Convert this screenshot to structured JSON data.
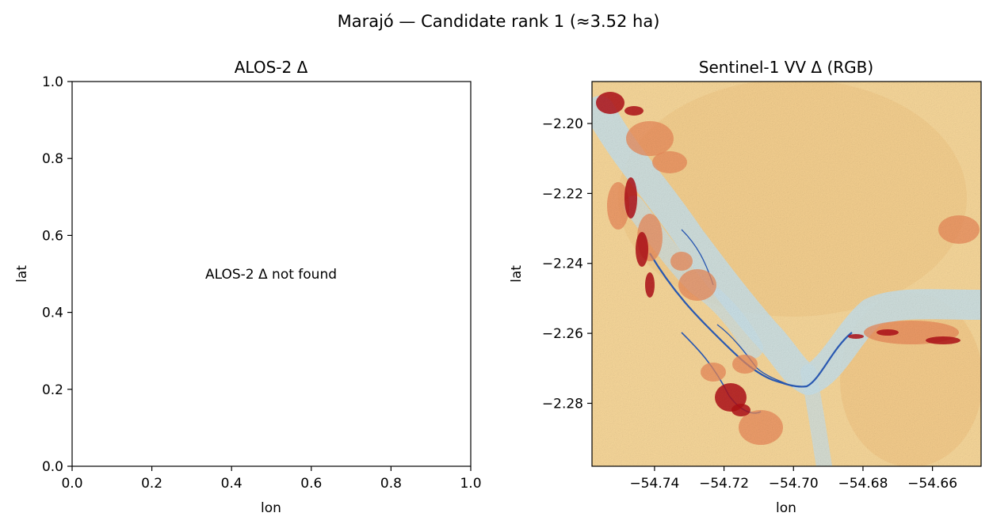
{
  "suptitle": "Marajó — Candidate rank 1 (≈3.52 ha)",
  "chart_data": [
    {
      "type": "scatter",
      "title": "ALOS-2 Δ",
      "xlabel": "lon",
      "ylabel": "lat",
      "xlim": [
        0.0,
        1.0
      ],
      "ylim": [
        0.0,
        1.0
      ],
      "x_ticks": [
        0.0,
        0.2,
        0.4,
        0.6,
        0.8,
        1.0
      ],
      "y_ticks": [
        0.0,
        0.2,
        0.4,
        0.6,
        0.8,
        1.0
      ],
      "x_tick_labels": [
        "0.0",
        "0.2",
        "0.4",
        "0.6",
        "0.8",
        "1.0"
      ],
      "y_tick_labels": [
        "0.0",
        "0.2",
        "0.4",
        "0.6",
        "0.8",
        "1.0"
      ],
      "annotation": "ALOS-2 Δ not found",
      "series": []
    },
    {
      "type": "heatmap",
      "title": "Sentinel-1 VV Δ (RGB)",
      "xlabel": "lon",
      "ylabel": "lat",
      "xlim": [
        -54.758,
        -54.646
      ],
      "ylim": [
        -2.298,
        -2.188
      ],
      "x_ticks": [
        -54.74,
        -54.72,
        -54.7,
        -54.68,
        -54.66
      ],
      "y_ticks": [
        -2.2,
        -2.22,
        -2.24,
        -2.26,
        -2.28
      ],
      "x_tick_labels": [
        "−54.74",
        "−54.72",
        "−54.70",
        "−54.68",
        "−54.66"
      ],
      "y_tick_labels": [
        "−2.20",
        "−2.22",
        "−2.24",
        "−2.26",
        "−2.28"
      ],
      "colormap": "RdYlBu",
      "colors": {
        "background": "#f7d79a",
        "blue_channel": "#2b5cb8",
        "light_blue": "#c8e0ea",
        "orange": "#e9895a",
        "dark_red": "#b01018"
      }
    }
  ]
}
